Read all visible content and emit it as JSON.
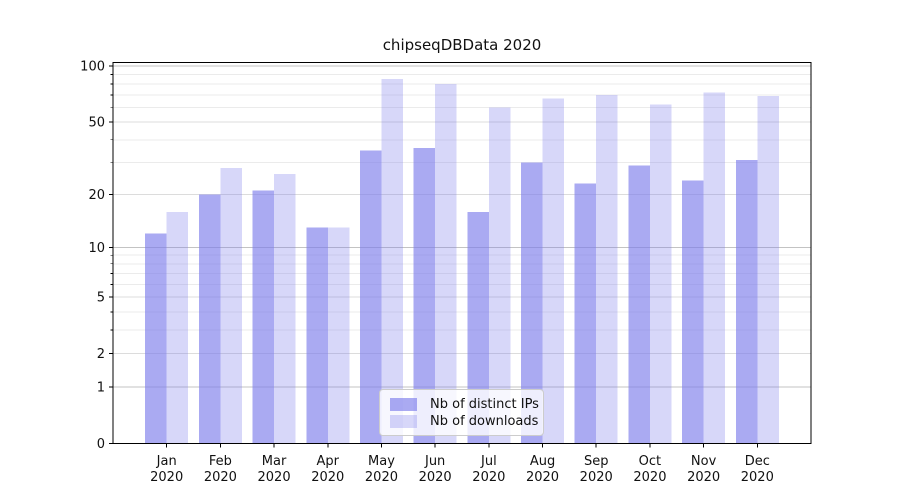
{
  "chart_data": {
    "type": "bar",
    "title": "chipseqDBData 2020",
    "categories": [
      "Jan 2020",
      "Feb 2020",
      "Mar 2020",
      "Apr 2020",
      "May 2020",
      "Jun 2020",
      "Jul 2020",
      "Aug 2020",
      "Sep 2020",
      "Oct 2020",
      "Nov 2020",
      "Dec 2020"
    ],
    "series": [
      {
        "name": "Nb of distinct IPs",
        "color": "#7c7ceb",
        "opacity": 0.65,
        "values": [
          12,
          20,
          21,
          13,
          35,
          36,
          16,
          30,
          23,
          29,
          24,
          31
        ]
      },
      {
        "name": "Nb of downloads",
        "color": "#7c7ceb",
        "opacity": 0.3,
        "values": [
          16,
          28,
          26,
          13,
          85,
          80,
          60,
          67,
          70,
          62,
          72,
          69
        ]
      }
    ],
    "xlabel": "",
    "ylabel": "",
    "yscale": "log1p",
    "ylim": [
      0,
      104.5
    ],
    "yticks": [
      0,
      1,
      2,
      5,
      10,
      20,
      50,
      100
    ],
    "minor_yticks": [
      3,
      4,
      6,
      7,
      8,
      9,
      30,
      40,
      60,
      70,
      80,
      90
    ],
    "grid": true,
    "legend_position": "lower center"
  },
  "colors": {
    "background": "#ffffff",
    "spine": "#000000",
    "text": "#111111",
    "grid_decade": "#c3c3c3",
    "grid_major": "#dcdcdc",
    "grid_minor": "#ebebeb",
    "legend_border": "#cccccc",
    "legend_background": "rgba(255,255,255,0.8)"
  }
}
